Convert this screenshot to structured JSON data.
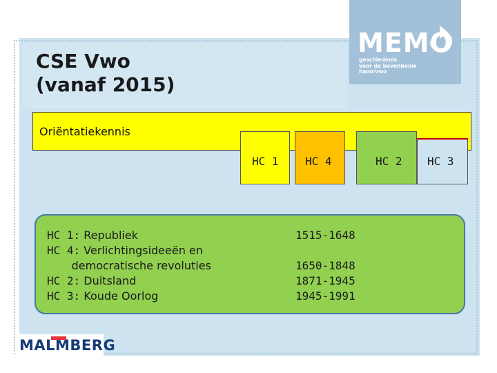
{
  "title": "CSE Vwo\n(vanaf 2015)",
  "memo": {
    "name": "MEMO",
    "subtitle": "geschiedenis\nvoor de bovenbouw\nhavo/vwo"
  },
  "orientatie": {
    "label": "Oriëntatiekennis"
  },
  "hc_boxes": [
    {
      "label": "HC 1",
      "color": "#ffff00"
    },
    {
      "label": "HC 4",
      "color": "#ffc000"
    },
    {
      "label": "HC 2",
      "color": "#92d050"
    },
    {
      "label": "HC 3",
      "color": "#cde3f0"
    }
  ],
  "topics": [
    {
      "code": "HC 1:",
      "text": "Republiek",
      "years": "1515-1648"
    },
    {
      "code": "HC 4:",
      "text": "Verlichtingsideeën en\n       democratische revoluties",
      "years": "1650-1848"
    },
    {
      "code": "HC 2:",
      "text": "Duitsland",
      "years": "1871-1945"
    },
    {
      "code": "HC 3:",
      "text": "Koude Oorlog",
      "years": "1945-1991"
    }
  ],
  "publisher": "MALMBERG"
}
